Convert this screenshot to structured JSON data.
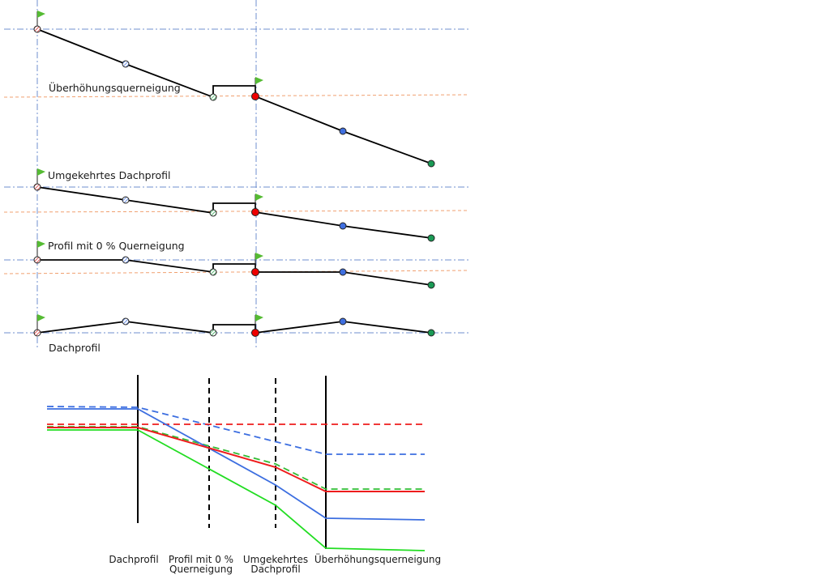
{
  "diagram": {
    "profile_labels": {
      "ueberhoehung": "Überhöhungsquerneigung",
      "umgekehrt": "Umgekehrtes Dachprofil",
      "null_prozent": "Profil mit 0 % Querneigung",
      "dach": "Dachprofil"
    },
    "transition_labels": {
      "dach": "Dachprofil",
      "null_line1": "Profil mit 0 %",
      "null_line2": "Querneigung",
      "umgekehrt_line1": "Umgekehrtes",
      "umgekehrt_line2": "Dachprofil",
      "ueberhoehung": "Überhöhungsquerneigung"
    },
    "colors": {
      "red": "#ee1c1c",
      "blue": "#3c6ee0",
      "green": "#22dd22",
      "green_dashed": "#33bb33",
      "marker_green": "#1a9a55",
      "marker_blue": "#3f6fe0",
      "marker_red": "#ee0000",
      "flag": "#55bb33",
      "axis_dashdot": "#6f8fcf",
      "ref_dashed": "#f0a070"
    }
  }
}
